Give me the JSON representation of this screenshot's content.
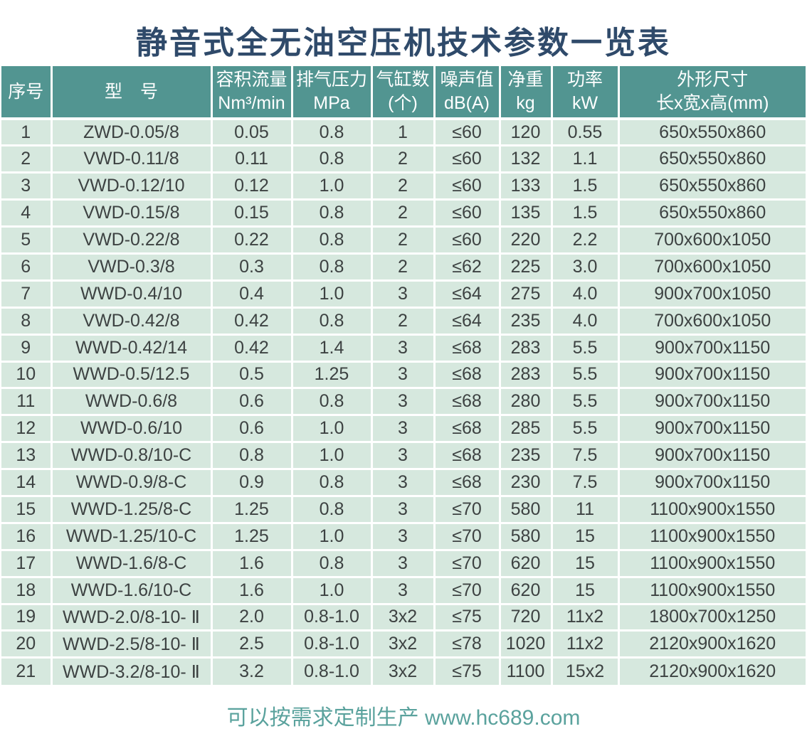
{
  "title": "静音式全无油空压机技术参数一览表",
  "footer": "可以按需求定制生产 www.hc689.com",
  "colors": {
    "title_text": "#2f4a6a",
    "header_bg": "#529591",
    "header_text": "#ffffff",
    "row_bg": "#d6e8de",
    "cell_text": "#3d4242",
    "divider": "#ffffff",
    "footer_text": "#5aa29d",
    "page_bg": "#ffffff"
  },
  "table": {
    "columns": [
      {
        "key": "index",
        "label_lines": [
          "序号"
        ]
      },
      {
        "key": "model",
        "label_lines": [
          "型　号"
        ]
      },
      {
        "key": "flow",
        "label_lines": [
          "容积流量",
          "Nm³/min"
        ]
      },
      {
        "key": "pressure",
        "label_lines": [
          "排气压力",
          "MPa"
        ]
      },
      {
        "key": "cylinders",
        "label_lines": [
          "气缸数",
          "(个)"
        ]
      },
      {
        "key": "noise",
        "label_lines": [
          "噪声值",
          "dB(A)"
        ]
      },
      {
        "key": "weight",
        "label_lines": [
          "净重",
          "kg"
        ]
      },
      {
        "key": "power",
        "label_lines": [
          "功率",
          "kW"
        ]
      },
      {
        "key": "dimensions",
        "label_lines": [
          "外形尺寸",
          "长x宽x高(mm)"
        ]
      }
    ],
    "rows": [
      [
        "1",
        "ZWD-0.05/8",
        "0.05",
        "0.8",
        "1",
        "≤60",
        "120",
        "0.55",
        "650x550x860"
      ],
      [
        "2",
        "VWD-0.11/8",
        "0.11",
        "0.8",
        "2",
        "≤60",
        "132",
        "1.1",
        "650x550x860"
      ],
      [
        "3",
        "VWD-0.12/10",
        "0.12",
        "1.0",
        "2",
        "≤60",
        "133",
        "1.5",
        "650x550x860"
      ],
      [
        "4",
        "VWD-0.15/8",
        "0.15",
        "0.8",
        "2",
        "≤60",
        "135",
        "1.5",
        "650x550x860"
      ],
      [
        "5",
        "VWD-0.22/8",
        "0.22",
        "0.8",
        "2",
        "≤60",
        "220",
        "2.2",
        "700x600x1050"
      ],
      [
        "6",
        "VWD-0.3/8",
        "0.3",
        "0.8",
        "2",
        "≤62",
        "225",
        "3.0",
        "700x600x1050"
      ],
      [
        "7",
        "WWD-0.4/10",
        "0.4",
        "1.0",
        "3",
        "≤64",
        "275",
        "4.0",
        "900x700x1050"
      ],
      [
        "8",
        "VWD-0.42/8",
        "0.42",
        "0.8",
        "2",
        "≤64",
        "235",
        "4.0",
        "700x600x1050"
      ],
      [
        "9",
        "WWD-0.42/14",
        "0.42",
        "1.4",
        "3",
        "≤68",
        "283",
        "5.5",
        "900x700x1150"
      ],
      [
        "10",
        "WWD-0.5/12.5",
        "0.5",
        "1.25",
        "3",
        "≤68",
        "283",
        "5.5",
        "900x700x1150"
      ],
      [
        "11",
        "WWD-0.6/8",
        "0.6",
        "0.8",
        "3",
        "≤68",
        "280",
        "5.5",
        "900x700x1150"
      ],
      [
        "12",
        "WWD-0.6/10",
        "0.6",
        "1.0",
        "3",
        "≤68",
        "285",
        "5.5",
        "900x700x1150"
      ],
      [
        "13",
        "WWD-0.8/10-C",
        "0.8",
        "1.0",
        "3",
        "≤68",
        "235",
        "7.5",
        "900x700x1150"
      ],
      [
        "14",
        "WWD-0.9/8-C",
        "0.9",
        "0.8",
        "3",
        "≤68",
        "230",
        "7.5",
        "900x700x1150"
      ],
      [
        "15",
        "WWD-1.25/8-C",
        "1.25",
        "0.8",
        "3",
        "≤70",
        "580",
        "11",
        "1100x900x1550"
      ],
      [
        "16",
        "WWD-1.25/10-C",
        "1.25",
        "1.0",
        "3",
        "≤70",
        "580",
        "15",
        "1100x900x1550"
      ],
      [
        "17",
        "WWD-1.6/8-C",
        "1.6",
        "0.8",
        "3",
        "≤70",
        "620",
        "15",
        "1100x900x1550"
      ],
      [
        "18",
        "WWD-1.6/10-C",
        "1.6",
        "1.0",
        "3",
        "≤70",
        "620",
        "15",
        "1100x900x1550"
      ],
      [
        "19",
        "WWD-2.0/8-10- Ⅱ",
        "2.0",
        "0.8-1.0",
        "3x2",
        "≤75",
        "720",
        "11x2",
        "1800x700x1250"
      ],
      [
        "20",
        "WWD-2.5/8-10- Ⅱ",
        "2.5",
        "0.8-1.0",
        "3x2",
        "≤78",
        "1020",
        "11x2",
        "2120x900x1620"
      ],
      [
        "21",
        "WWD-3.2/8-10- Ⅱ",
        "3.2",
        "0.8-1.0",
        "3x2",
        "≤75",
        "1100",
        "15x2",
        "2120x900x1620"
      ]
    ]
  }
}
